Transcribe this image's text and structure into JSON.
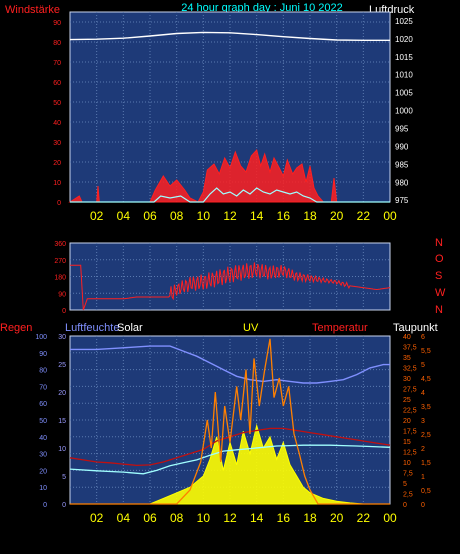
{
  "colors": {
    "background": "#000000",
    "plot_bg": "#1e3a78",
    "grid": "#5a7ab0",
    "frame": "#c8d4ee",
    "red": "#ff2020",
    "yellow": "#ffff00",
    "white": "#ffffff",
    "cyan": "#a0ffff",
    "blue_axis": "#9a9aff",
    "orange": "#ff8000",
    "light_blue": "#8090ff",
    "dark_red": "#c01010",
    "cyan_label": "#00ffff",
    "orange_axis": "#ff6000"
  },
  "header": {
    "windstaerke": "Windstärke",
    "title": "24 hour graph day : Juni 10 2022",
    "luftdruck": "Luftdruck"
  },
  "labels": {
    "regen": "Regen",
    "luftfeuchte": "Luftfeuchte",
    "solar": "Solar",
    "uv": "UV",
    "temperatur": "Temperatur",
    "taupunkt": "Taupunkt"
  },
  "chart_data": [
    {
      "type": "line",
      "name": "wind-pressure",
      "x_ticks": [
        "02",
        "04",
        "06",
        "08",
        "10",
        "12",
        "14",
        "16",
        "18",
        "20",
        "22",
        "00"
      ],
      "y_left_ticks": [
        "0",
        "10",
        "20",
        "30",
        "40",
        "50",
        "60",
        "70",
        "80",
        "90"
      ],
      "y_right_ticks": [
        "975",
        "980",
        "985",
        "990",
        "995",
        "1000",
        "1005",
        "1010",
        "1015",
        "1020",
        "1025"
      ],
      "ylim_left": [
        0,
        95
      ],
      "ylim_right": [
        974.5,
        1027.5
      ],
      "pressure": [
        [
          0,
          1019.8
        ],
        [
          2,
          1019.9
        ],
        [
          4,
          1020.2
        ],
        [
          6,
          1020.8
        ],
        [
          8,
          1021.5
        ],
        [
          10,
          1021.8
        ],
        [
          12,
          1021.7
        ],
        [
          14,
          1021.2
        ],
        [
          16,
          1020.6
        ],
        [
          18,
          1020.1
        ],
        [
          20,
          1019.7
        ],
        [
          22,
          1019.6
        ],
        [
          24,
          1019.6
        ]
      ],
      "wind_gust": [
        [
          0,
          0
        ],
        [
          0.7,
          3
        ],
        [
          0.9,
          0
        ],
        [
          2,
          0
        ],
        [
          2.1,
          8
        ],
        [
          2.2,
          0
        ],
        [
          6,
          0
        ],
        [
          6.4,
          6
        ],
        [
          7,
          13
        ],
        [
          7.5,
          8
        ],
        [
          8,
          11
        ],
        [
          8.6,
          6
        ],
        [
          9,
          2
        ],
        [
          9.6,
          0
        ],
        [
          10,
          5
        ],
        [
          10.3,
          16
        ],
        [
          10.8,
          19
        ],
        [
          11.2,
          14
        ],
        [
          11.6,
          22
        ],
        [
          12,
          17
        ],
        [
          12.4,
          25
        ],
        [
          12.8,
          18
        ],
        [
          13.2,
          15
        ],
        [
          13.6,
          23
        ],
        [
          14,
          26
        ],
        [
          14.3,
          18
        ],
        [
          14.6,
          24
        ],
        [
          15,
          15
        ],
        [
          15.3,
          22
        ],
        [
          15.7,
          17
        ],
        [
          16,
          13
        ],
        [
          16.3,
          21
        ],
        [
          16.7,
          14
        ],
        [
          17,
          17
        ],
        [
          17.4,
          19
        ],
        [
          17.7,
          10
        ],
        [
          18,
          18
        ],
        [
          18.3,
          7
        ],
        [
          18.6,
          3
        ],
        [
          19,
          0
        ],
        [
          19.6,
          0
        ],
        [
          19.8,
          12
        ],
        [
          20,
          0
        ],
        [
          24,
          0
        ]
      ],
      "wind_avg": [
        [
          0,
          0
        ],
        [
          6.3,
          0
        ],
        [
          6.8,
          3
        ],
        [
          7.5,
          2
        ],
        [
          8.3,
          3
        ],
        [
          9,
          0
        ],
        [
          10,
          0
        ],
        [
          10.5,
          4
        ],
        [
          11,
          7
        ],
        [
          11.5,
          4
        ],
        [
          12,
          5
        ],
        [
          12.5,
          3
        ],
        [
          13,
          6
        ],
        [
          13.5,
          4
        ],
        [
          14,
          7
        ],
        [
          14.5,
          5
        ],
        [
          15,
          4
        ],
        [
          15.5,
          6
        ],
        [
          16,
          5
        ],
        [
          16.5,
          4
        ],
        [
          17,
          5
        ],
        [
          17.5,
          3
        ],
        [
          18,
          2
        ],
        [
          18.5,
          0
        ],
        [
          24,
          0
        ]
      ]
    },
    {
      "type": "line",
      "name": "wind-direction",
      "y_left_ticks": [
        "0",
        "90",
        "180",
        "270",
        "360"
      ],
      "y_right_ticks": [
        "N",
        "O",
        "S",
        "W",
        "N"
      ],
      "ylim": [
        0,
        360
      ],
      "direction": [
        [
          0,
          240
        ],
        [
          0.8,
          240
        ],
        [
          1,
          0
        ],
        [
          1.3,
          60
        ],
        [
          2,
          60
        ],
        [
          4,
          60
        ],
        [
          5,
          70
        ],
        [
          6,
          70
        ],
        [
          7.4,
          70
        ],
        [
          8,
          110
        ],
        [
          9,
          140
        ],
        [
          10,
          150
        ],
        [
          11,
          170
        ],
        [
          12,
          190
        ],
        [
          13,
          205
        ],
        [
          14,
          215
        ],
        [
          15,
          200
        ],
        [
          16,
          210
        ],
        [
          17,
          180
        ],
        [
          18,
          170
        ],
        [
          19,
          160
        ],
        [
          20,
          150
        ],
        [
          21,
          130
        ],
        [
          22,
          120
        ],
        [
          23,
          110
        ],
        [
          24,
          120
        ]
      ]
    },
    {
      "type": "line",
      "name": "multi-sensor",
      "y_left_ticks": [
        "0",
        "10",
        "20",
        "30",
        "40",
        "50",
        "60",
        "70",
        "80",
        "90",
        "100"
      ],
      "y_mid_ticks": [
        "0",
        "5",
        "10",
        "15",
        "20",
        "25",
        "30"
      ],
      "y_right_ticks": [
        "0",
        "2,5",
        "5",
        "7,5",
        "10",
        "12,5",
        "15",
        "17,5",
        "20",
        "22,5",
        "25",
        "27,5",
        "30",
        "32,5",
        "35",
        "37,5",
        "40"
      ],
      "y_far_right_ticks": [
        "0",
        "0,5",
        "1",
        "1,5",
        "2",
        "2,5",
        "3",
        "3,5",
        "4",
        "4,5",
        "5",
        "5,5",
        "6"
      ],
      "humidity": [
        [
          0,
          92
        ],
        [
          2,
          92
        ],
        [
          4,
          93
        ],
        [
          6,
          94
        ],
        [
          7.5,
          94
        ],
        [
          8.5,
          91
        ],
        [
          9.5,
          88
        ],
        [
          10.5,
          84
        ],
        [
          11.5,
          80
        ],
        [
          12.5,
          76
        ],
        [
          13.5,
          74
        ],
        [
          14.5,
          73
        ],
        [
          15.5,
          74
        ],
        [
          16.5,
          73
        ],
        [
          17.5,
          72
        ],
        [
          18.5,
          72
        ],
        [
          19.5,
          73
        ],
        [
          20.5,
          74
        ],
        [
          21.5,
          77
        ],
        [
          22.5,
          81
        ],
        [
          23.5,
          83
        ],
        [
          24,
          83
        ]
      ],
      "temperature": [
        [
          0,
          11
        ],
        [
          1,
          10.5
        ],
        [
          2,
          10
        ],
        [
          3,
          9.8
        ],
        [
          4,
          9.5
        ],
        [
          5,
          9.2
        ],
        [
          6,
          9.3
        ],
        [
          7,
          10
        ],
        [
          8,
          11
        ],
        [
          9,
          12
        ],
        [
          10,
          13
        ],
        [
          11,
          15
        ],
        [
          12,
          16
        ],
        [
          13,
          17
        ],
        [
          14,
          17.5
        ],
        [
          15,
          18
        ],
        [
          16,
          18
        ],
        [
          17,
          17.5
        ],
        [
          18,
          17
        ],
        [
          19,
          16.5
        ],
        [
          20,
          16
        ],
        [
          21,
          15.5
        ],
        [
          22,
          15
        ],
        [
          23,
          14.5
        ],
        [
          24,
          14
        ]
      ],
      "dewpoint": [
        [
          0,
          8.3
        ],
        [
          2,
          7.9
        ],
        [
          4,
          7.6
        ],
        [
          5.5,
          7.2
        ],
        [
          6.5,
          8
        ],
        [
          7.5,
          9.1
        ],
        [
          8.5,
          9.8
        ],
        [
          9.5,
          10.5
        ],
        [
          10.5,
          11.6
        ],
        [
          11.5,
          12.6
        ],
        [
          12.5,
          12.9
        ],
        [
          13.5,
          13.2
        ],
        [
          14.5,
          13.5
        ],
        [
          15.5,
          13.8
        ],
        [
          16.5,
          13.9
        ],
        [
          17.5,
          14
        ],
        [
          18.5,
          14
        ],
        [
          19.5,
          14
        ],
        [
          20.5,
          13.9
        ],
        [
          21.5,
          13.8
        ],
        [
          22.5,
          13.7
        ],
        [
          24,
          13.5
        ]
      ],
      "uv": [
        [
          0,
          0
        ],
        [
          8,
          0
        ],
        [
          9,
          0.5
        ],
        [
          9.8,
          1.5
        ],
        [
          10.3,
          3
        ],
        [
          10.6,
          2
        ],
        [
          10.9,
          4
        ],
        [
          11.3,
          1.5
        ],
        [
          11.6,
          3.5
        ],
        [
          12,
          2.2
        ],
        [
          12.5,
          4.2
        ],
        [
          12.8,
          3
        ],
        [
          13.2,
          4.8
        ],
        [
          13.5,
          2.5
        ],
        [
          13.8,
          5.2
        ],
        [
          14.2,
          3.5
        ],
        [
          14.6,
          4.8
        ],
        [
          15,
          5.9
        ],
        [
          15.3,
          3.8
        ],
        [
          15.7,
          4.5
        ],
        [
          16,
          3.5
        ],
        [
          16.4,
          4.2
        ],
        [
          16.8,
          2.5
        ],
        [
          17.2,
          1.8
        ],
        [
          17.6,
          1
        ],
        [
          18,
          0.5
        ],
        [
          18.6,
          0
        ],
        [
          24,
          0
        ]
      ],
      "solar": [
        [
          0,
          0
        ],
        [
          6,
          0
        ],
        [
          7,
          1
        ],
        [
          8,
          2
        ],
        [
          9,
          3
        ],
        [
          10,
          5
        ],
        [
          10.5,
          8
        ],
        [
          11,
          12
        ],
        [
          11.5,
          6
        ],
        [
          12,
          11
        ],
        [
          12.5,
          7
        ],
        [
          13,
          13
        ],
        [
          13.5,
          9
        ],
        [
          14,
          14
        ],
        [
          14.5,
          10
        ],
        [
          15,
          12
        ],
        [
          15.5,
          8
        ],
        [
          16,
          11
        ],
        [
          16.5,
          7
        ],
        [
          17,
          5
        ],
        [
          17.5,
          3
        ],
        [
          18,
          2
        ],
        [
          19,
          1
        ],
        [
          20,
          0.5
        ],
        [
          21,
          0.2
        ],
        [
          22,
          0
        ],
        [
          24,
          0
        ]
      ]
    }
  ]
}
